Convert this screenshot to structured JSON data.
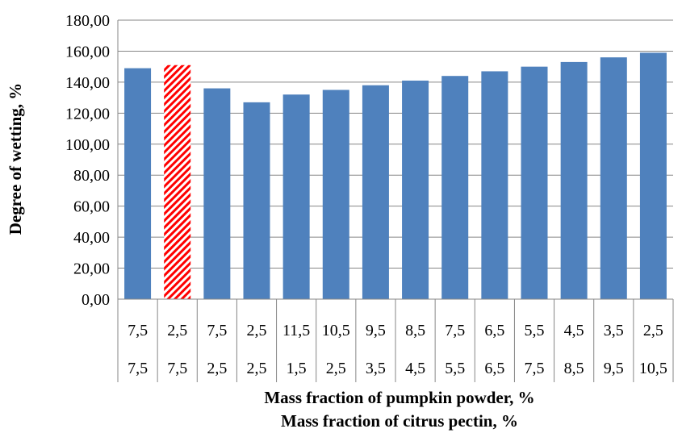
{
  "chart_data": {
    "type": "bar",
    "ylabel": "Degree of wetting, %",
    "xlabel_lines": [
      "Mass fraction of pumpkin powder, %",
      "Mass fraction of citrus pectin, %"
    ],
    "category_rows": [
      [
        "7,5",
        "2,5",
        "7,5",
        "2,5",
        "11,5",
        "10,5",
        "9,5",
        "8,5",
        "7,5",
        "6,5",
        "5,5",
        "4,5",
        "3,5",
        "2,5"
      ],
      [
        "7,5",
        "7,5",
        "2,5",
        "2,5",
        "1,5",
        "2,5",
        "3,5",
        "4,5",
        "5,5",
        "6,5",
        "7,5",
        "8,5",
        "9,5",
        "10,5"
      ]
    ],
    "values": [
      149,
      151,
      136,
      127,
      132,
      135,
      138,
      141,
      144,
      147,
      150,
      153,
      156,
      159
    ],
    "highlight_index": 1,
    "ylim": [
      0,
      180
    ],
    "yticks": [
      "0,00",
      "20,00",
      "40,00",
      "60,00",
      "80,00",
      "100,00",
      "120,00",
      "140,00",
      "160,00",
      "180,00"
    ],
    "grid": true,
    "colors": {
      "bar": "#4f81bd",
      "highlight_a": "#ff0000",
      "highlight_b": "#ffffff",
      "grid": "#868686"
    }
  }
}
